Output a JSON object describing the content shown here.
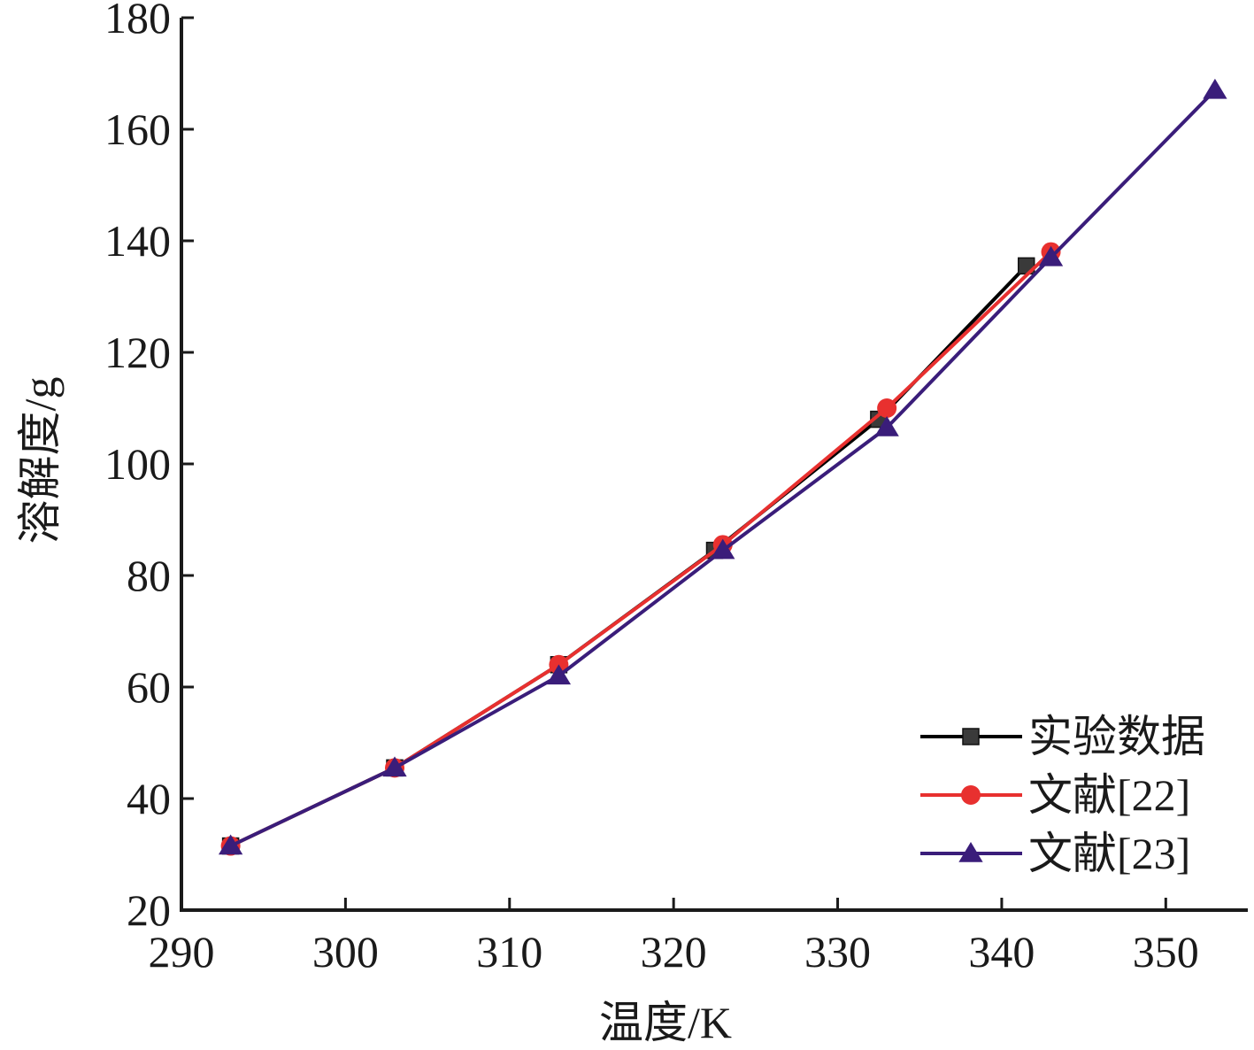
{
  "chart_data": {
    "type": "line",
    "title": "",
    "xlabel": "温度/K",
    "ylabel": "溶解度/g",
    "xlim": [
      290,
      355
    ],
    "ylim": [
      20,
      180
    ],
    "xticks": [
      "290",
      "300",
      "310",
      "320",
      "330",
      "340",
      "350"
    ],
    "yticks": [
      "20",
      "40",
      "60",
      "80",
      "100",
      "120",
      "140",
      "160",
      "180"
    ],
    "grid": false,
    "legend_position": "bottom-right",
    "series": [
      {
        "name": "实验数据",
        "color": "#000000",
        "marker": "square",
        "x": [
          293,
          303,
          313,
          322.5,
          332.5,
          341.5
        ],
        "y": [
          31.5,
          45.5,
          64,
          84.5,
          108,
          135.5
        ]
      },
      {
        "name": "文献[22]",
        "color": "#e8302f",
        "marker": "circle",
        "x": [
          293,
          303,
          313,
          323,
          333,
          343
        ],
        "y": [
          31.5,
          45.5,
          64,
          85.5,
          110,
          138
        ]
      },
      {
        "name": "文献[23]",
        "color": "#3a1d7a",
        "marker": "triangle",
        "x": [
          293,
          303,
          313,
          323,
          333,
          343,
          353
        ],
        "y": [
          31.5,
          45.5,
          62,
          84.5,
          106.5,
          137,
          167
        ]
      }
    ]
  }
}
